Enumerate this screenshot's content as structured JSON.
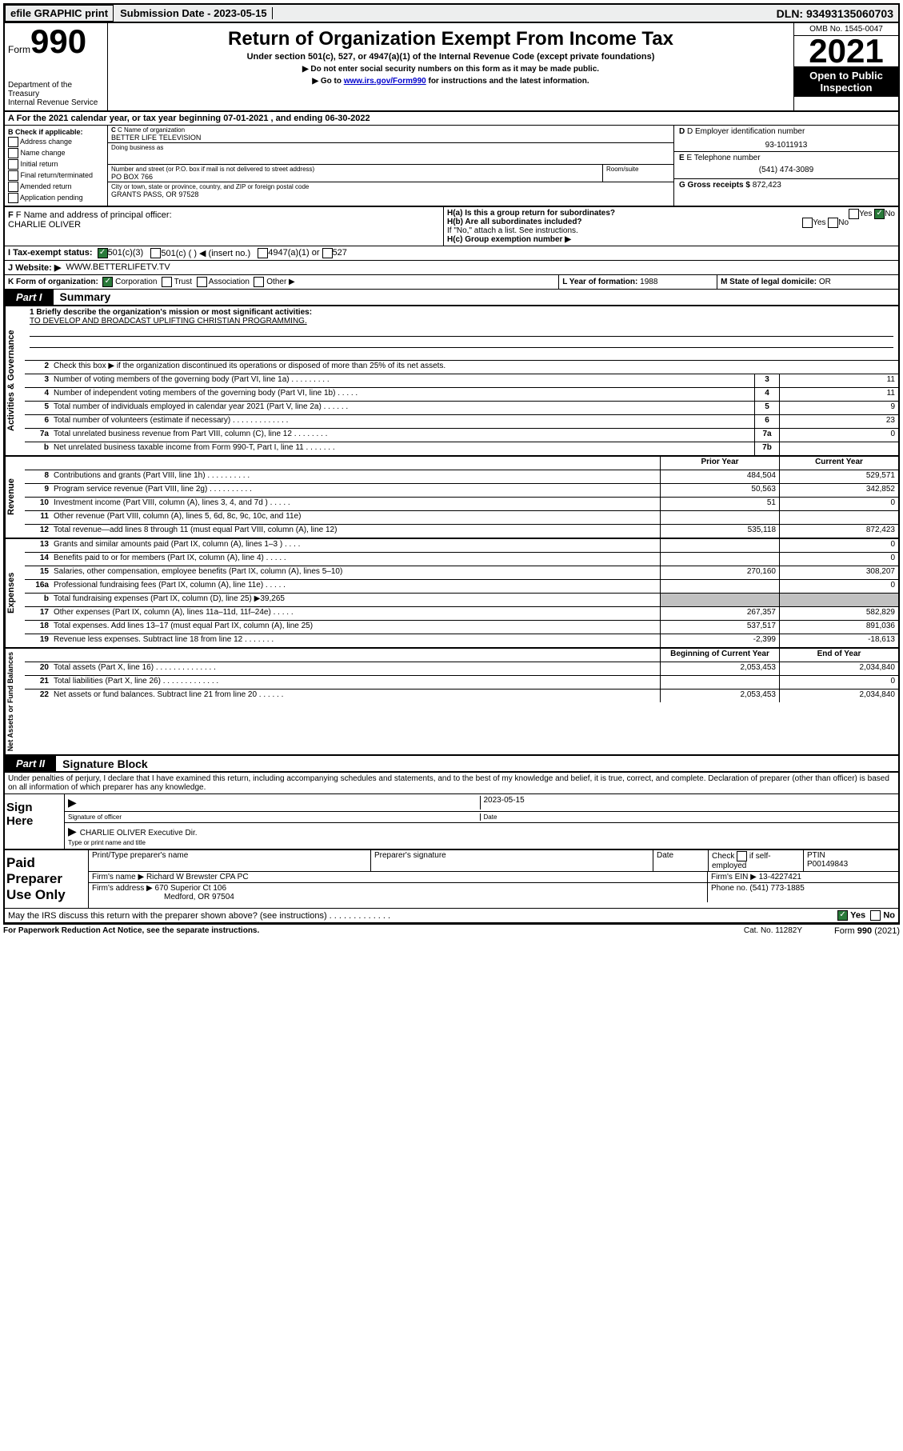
{
  "topbar": {
    "efile": "efile GRAPHIC print",
    "subdate_label": "Submission Date - 2023-05-15",
    "dln": "DLN: 93493135060703"
  },
  "header": {
    "form_prefix": "Form",
    "form_number": "990",
    "title": "Return of Organization Exempt From Income Tax",
    "subtitle": "Under section 501(c), 527, or 4947(a)(1) of the Internal Revenue Code (except private foundations)",
    "note1": "▶ Do not enter social security numbers on this form as it may be made public.",
    "note2_pre": "▶ Go to ",
    "note2_link": "www.irs.gov/Form990",
    "note2_post": " for instructions and the latest information.",
    "dept": "Department of the Treasury",
    "irs": "Internal Revenue Service",
    "omb": "OMB No. 1545-0047",
    "year": "2021",
    "open": "Open to Public Inspection"
  },
  "lineA": "A For the 2021 calendar year, or tax year beginning 07-01-2021   , and ending 06-30-2022",
  "boxB": {
    "title": "B Check if applicable:",
    "items": [
      "Address change",
      "Name change",
      "Initial return",
      "Final return/terminated",
      "Amended return",
      "Application pending"
    ]
  },
  "boxC": {
    "name_label": "C Name of organization",
    "name": "BETTER LIFE TELEVISION",
    "dba_label": "Doing business as",
    "addr_label": "Number and street (or P.O. box if mail is not delivered to street address)",
    "room_label": "Room/suite",
    "addr": "PO BOX 766",
    "city_label": "City or town, state or province, country, and ZIP or foreign postal code",
    "city": "GRANTS PASS, OR  97528"
  },
  "boxD": {
    "ein_label": "D Employer identification number",
    "ein": "93-1011913",
    "phone_label": "E Telephone number",
    "phone": "(541) 474-3089",
    "gross_label": "G Gross receipts $",
    "gross": "872,423"
  },
  "officer": {
    "label": "F Name and address of principal officer:",
    "name": "CHARLIE OLIVER"
  },
  "hBlock": {
    "ha": "H(a)  Is this a group return for subordinates?",
    "hb": "H(b)  Are all subordinates included?",
    "hb_note": "If \"No,\" attach a list. See instructions.",
    "hc": "H(c)  Group exemption number ▶",
    "yes": "Yes",
    "no": "No"
  },
  "lineI": {
    "label": "I     Tax-exempt status:",
    "opts": [
      "501(c)(3)",
      "501(c) (   ) ◀ (insert no.)",
      "4947(a)(1) or",
      "527"
    ]
  },
  "lineJ": {
    "label": "J     Website: ▶",
    "val": "WWW.BETTERLIFETV.TV"
  },
  "klm": {
    "k_label": "K Form of organization:",
    "k_opts": [
      "Corporation",
      "Trust",
      "Association",
      "Other ▶"
    ],
    "l_label": "L Year of formation:",
    "l_val": "1988",
    "m_label": "M State of legal domicile:",
    "m_val": "OR"
  },
  "part1": {
    "tab": "Part I",
    "title": "Summary"
  },
  "gov": {
    "vlabel": "Activities & Governance",
    "l1_label": "1   Briefly describe the organization's mission or most significant activities:",
    "l1_text": "TO DEVELOP AND BROADCAST UPLIFTING CHRISTIAN PROGRAMMING.",
    "l2": "Check this box ▶        if the organization discontinued its operations or disposed of more than 25% of its net assets.",
    "rows": [
      {
        "n": "3",
        "d": "Number of voting members of the governing body (Part VI, line 1a)  .   .   .   .   .   .   .   .   .",
        "b": "3",
        "v": "11"
      },
      {
        "n": "4",
        "d": "Number of independent voting members of the governing body (Part VI, line 1b)  .   .   .   .   .",
        "b": "4",
        "v": "11"
      },
      {
        "n": "5",
        "d": "Total number of individuals employed in calendar year 2021 (Part V, line 2a)  .   .   .   .   .   .",
        "b": "5",
        "v": "9"
      },
      {
        "n": "6",
        "d": "Total number of volunteers (estimate if necessary)  .   .   .   .   .   .   .   .   .   .   .   .   .",
        "b": "6",
        "v": "23"
      },
      {
        "n": "7a",
        "d": "Total unrelated business revenue from Part VIII, column (C), line 12  .   .   .   .   .   .   .   .",
        "b": "7a",
        "v": "0"
      },
      {
        "n": "b",
        "d": "Net unrelated business taxable income from Form 990-T, Part I, line 11  .   .   .   .   .   .   .",
        "b": "7b",
        "v": ""
      }
    ]
  },
  "rev": {
    "vlabel": "Revenue",
    "hdr_prior": "Prior Year",
    "hdr_curr": "Current Year",
    "rows": [
      {
        "n": "8",
        "d": "Contributions and grants (Part VIII, line 1h)  .   .   .   .   .   .   .   .   .   .",
        "p": "484,504",
        "c": "529,571"
      },
      {
        "n": "9",
        "d": "Program service revenue (Part VIII, line 2g)  .   .   .   .   .   .   .   .   .   .",
        "p": "50,563",
        "c": "342,852"
      },
      {
        "n": "10",
        "d": "Investment income (Part VIII, column (A), lines 3, 4, and 7d )  .   .   .   .   .",
        "p": "51",
        "c": "0"
      },
      {
        "n": "11",
        "d": "Other revenue (Part VIII, column (A), lines 5, 6d, 8c, 9c, 10c, and 11e)",
        "p": "",
        "c": ""
      },
      {
        "n": "12",
        "d": "Total revenue—add lines 8 through 11 (must equal Part VIII, column (A), line 12)",
        "p": "535,118",
        "c": "872,423"
      }
    ]
  },
  "exp": {
    "vlabel": "Expenses",
    "rows": [
      {
        "n": "13",
        "d": "Grants and similar amounts paid (Part IX, column (A), lines 1–3 )  .   .   .   .",
        "p": "",
        "c": "0"
      },
      {
        "n": "14",
        "d": "Benefits paid to or for members (Part IX, column (A), line 4)  .   .   .   .   .",
        "p": "",
        "c": "0"
      },
      {
        "n": "15",
        "d": "Salaries, other compensation, employee benefits (Part IX, column (A), lines 5–10)",
        "p": "270,160",
        "c": "308,207"
      },
      {
        "n": "16a",
        "d": "Professional fundraising fees (Part IX, column (A), line 11e)  .   .   .   .   .",
        "p": "",
        "c": "0"
      },
      {
        "n": "b",
        "d": "Total fundraising expenses (Part IX, column (D), line 25) ▶39,265",
        "p": "GREY",
        "c": "GREY"
      },
      {
        "n": "17",
        "d": "Other expenses (Part IX, column (A), lines 11a–11d, 11f–24e)  .   .   .   .   .",
        "p": "267,357",
        "c": "582,829"
      },
      {
        "n": "18",
        "d": "Total expenses. Add lines 13–17 (must equal Part IX, column (A), line 25)",
        "p": "537,517",
        "c": "891,036"
      },
      {
        "n": "19",
        "d": "Revenue less expenses. Subtract line 18 from line 12  .   .   .   .   .   .   .",
        "p": "-2,399",
        "c": "-18,613"
      }
    ]
  },
  "net": {
    "vlabel": "Net Assets or Fund Balances",
    "hdr_beg": "Beginning of Current Year",
    "hdr_end": "End of Year",
    "rows": [
      {
        "n": "20",
        "d": "Total assets (Part X, line 16)  .   .   .   .   .   .   .   .   .   .   .   .   .   .",
        "p": "2,053,453",
        "c": "2,034,840"
      },
      {
        "n": "21",
        "d": "Total liabilities (Part X, line 26)  .   .   .   .   .   .   .   .   .   .   .   .   .",
        "p": "",
        "c": "0"
      },
      {
        "n": "22",
        "d": "Net assets or fund balances. Subtract line 21 from line 20  .   .   .   .   .   .",
        "p": "2,053,453",
        "c": "2,034,840"
      }
    ]
  },
  "part2": {
    "tab": "Part II",
    "title": "Signature Block"
  },
  "sig": {
    "intro": "Under penalties of perjury, I declare that I have examined this return, including accompanying schedules and statements, and to the best of my knowledge and belief, it is true, correct, and complete. Declaration of preparer (other than officer) is based on all information of which preparer has any knowledge.",
    "sign_here": "Sign Here",
    "sig_officer": "Signature of officer",
    "date_label": "Date",
    "date": "2023-05-15",
    "name_title": "CHARLIE OLIVER  Executive Dir.",
    "type_label": "Type or print name and title"
  },
  "paid": {
    "label": "Paid Preparer Use Only",
    "h1": "Print/Type preparer's name",
    "h2": "Preparer's signature",
    "h3": "Date",
    "h4_check": "Check",
    "h4_if": "if self-employed",
    "h5": "PTIN",
    "ptin": "P00149843",
    "firm_name_label": "Firm's name      ▶",
    "firm_name": "Richard W Brewster CPA PC",
    "firm_ein_label": "Firm's EIN ▶",
    "firm_ein": "13-4227421",
    "firm_addr_label": "Firm's address ▶",
    "firm_addr1": "670 Superior Ct 106",
    "firm_addr2": "Medford, OR  97504",
    "phone_label": "Phone no.",
    "phone": "(541) 773-1885"
  },
  "discuss": {
    "q": "May the IRS discuss this return with the preparer shown above? (see instructions)  .   .   .   .   .   .   .   .   .   .   .   .   .",
    "yes": "Yes",
    "no": "No"
  },
  "footer": {
    "left": "For Paperwork Reduction Act Notice, see the separate instructions.",
    "mid": "Cat. No. 11282Y",
    "right_pre": "Form ",
    "right_num": "990",
    "right_post": " (2021)"
  }
}
